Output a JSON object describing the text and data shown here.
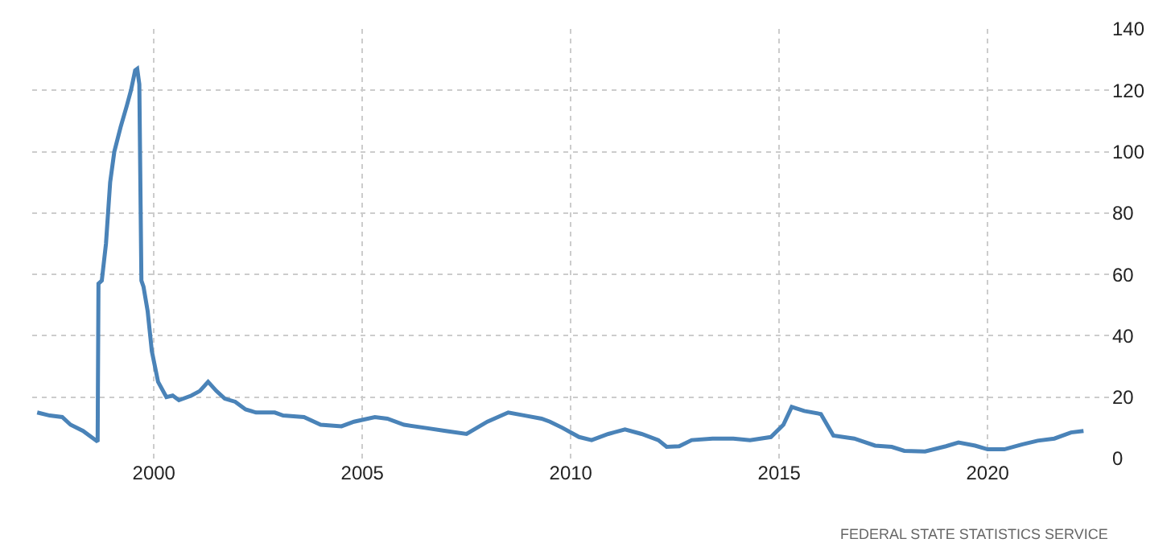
{
  "chart_data": {
    "type": "line",
    "x": [
      1997.2,
      1997.5,
      1997.8,
      1998.0,
      1998.3,
      1998.55,
      1998.65,
      1998.67,
      1998.75,
      1998.85,
      1998.95,
      1999.05,
      1999.2,
      1999.35,
      1999.45,
      1999.55,
      1999.6,
      1999.65,
      1999.7,
      1999.75,
      1999.85,
      1999.95,
      2000.1,
      2000.3,
      2000.45,
      2000.6,
      2000.9,
      2001.1,
      2001.3,
      2001.5,
      2001.7,
      2001.95,
      2002.2,
      2002.45,
      2002.9,
      2003.1,
      2003.6,
      2004.0,
      2004.5,
      2004.8,
      2005.3,
      2005.6,
      2006.0,
      2006.5,
      2007.0,
      2007.5,
      2008.0,
      2008.5,
      2008.9,
      2009.3,
      2009.5,
      2009.8,
      2010.2,
      2010.5,
      2010.9,
      2011.3,
      2011.7,
      2012.1,
      2012.3,
      2012.6,
      2012.9,
      2013.4,
      2013.9,
      2014.3,
      2014.8,
      2015.1,
      2015.3,
      2015.6,
      2016.0,
      2016.3,
      2016.8,
      2017.3,
      2017.7,
      2018.0,
      2018.5,
      2019.0,
      2019.3,
      2019.7,
      2020.0,
      2020.4,
      2020.8,
      2021.2,
      2021.6,
      2022.0,
      2022.3
    ],
    "series": [
      {
        "color": "#4a83b8",
        "values": [
          15,
          14,
          13.5,
          11,
          9,
          6.5,
          5.5,
          57,
          58,
          70,
          90,
          100,
          108,
          115,
          120,
          126.5,
          127,
          122,
          58,
          56,
          48,
          35,
          25,
          20,
          20.5,
          19,
          20.5,
          22,
          25,
          22,
          19.5,
          18.5,
          16,
          15,
          15,
          14,
          13.5,
          11,
          10.5,
          12,
          13.5,
          13,
          11,
          10,
          9,
          8,
          12,
          15,
          14,
          13,
          12,
          10,
          7,
          6,
          8,
          9.5,
          8,
          6,
          3.8,
          4,
          6,
          6.5,
          6.5,
          6,
          7,
          11,
          16.8,
          15.5,
          14.5,
          7.5,
          6.5,
          4.2,
          3.8,
          2.5,
          2.3,
          4,
          5.2,
          4.2,
          3,
          3,
          4.5,
          5.8,
          6.5,
          8.5,
          9
        ]
      }
    ],
    "xlim": [
      1997.08,
      2022.95
    ],
    "xticks": [
      2000,
      2005,
      2010,
      2015,
      2020
    ],
    "ylim": [
      0,
      140
    ],
    "yticks": [
      0,
      20,
      40,
      60,
      80,
      100,
      120,
      140
    ],
    "grid": true,
    "line_style": "solid",
    "marker": "none",
    "annotations": [
      "FEDERAL STATE STATISTICS SERVICE"
    ]
  }
}
